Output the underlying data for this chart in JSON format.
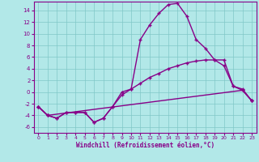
{
  "xlabel": "Windchill (Refroidissement éolien,°C)",
  "background_color": "#b2e8e8",
  "line_color": "#880088",
  "xlim": [
    -0.5,
    23.5
  ],
  "ylim": [
    -7,
    15.5
  ],
  "yticks": [
    -6,
    -4,
    -2,
    0,
    2,
    4,
    6,
    8,
    10,
    12,
    14
  ],
  "xticks": [
    0,
    1,
    2,
    3,
    4,
    5,
    6,
    7,
    8,
    9,
    10,
    11,
    12,
    13,
    14,
    15,
    16,
    17,
    18,
    19,
    20,
    21,
    22,
    23
  ],
  "series1_x": [
    0,
    1,
    2,
    3,
    4,
    5,
    6,
    7,
    8,
    9,
    10,
    11,
    12,
    13,
    14,
    15,
    16,
    17,
    18,
    19,
    20,
    21,
    22,
    23
  ],
  "series1_y": [
    -2.5,
    -4.0,
    -4.5,
    -3.5,
    -3.5,
    -3.5,
    -5.2,
    -4.5,
    -2.5,
    0.0,
    0.5,
    9.0,
    11.5,
    13.5,
    15.0,
    15.2,
    13.0,
    9.0,
    7.5,
    5.5,
    5.5,
    1.0,
    0.5,
    -1.5
  ],
  "series2_x": [
    0,
    1,
    2,
    3,
    4,
    5,
    6,
    7,
    8,
    9,
    10,
    11,
    12,
    13,
    14,
    15,
    16,
    17,
    18,
    19,
    20,
    21,
    22,
    23
  ],
  "series2_y": [
    -2.5,
    -4.0,
    -4.5,
    -3.5,
    -3.5,
    -3.5,
    -5.2,
    -4.5,
    -2.5,
    -0.5,
    0.5,
    1.5,
    2.5,
    3.2,
    4.0,
    4.5,
    5.0,
    5.3,
    5.5,
    5.5,
    4.5,
    1.0,
    0.3,
    -1.5
  ],
  "series3_x": [
    0,
    1,
    22,
    23
  ],
  "series3_y": [
    -2.5,
    -4.0,
    0.3,
    -1.5
  ],
  "grid_color": "#80c8c8",
  "marker": "+"
}
